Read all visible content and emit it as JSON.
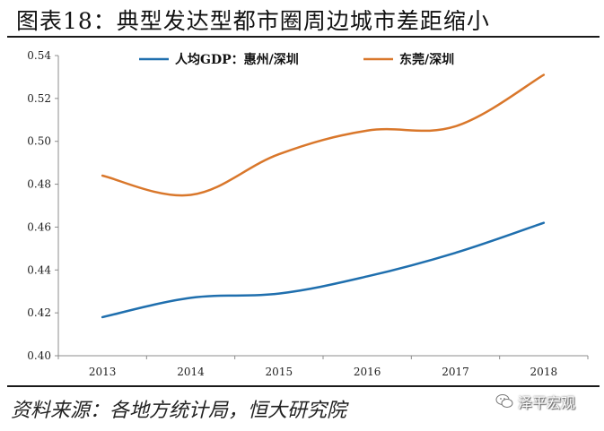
{
  "title": "图表18：典型发达型都市圈周边城市差距缩小",
  "source": "资料来源：各地方统计局，恒大研究院",
  "watermark": "泽平宏观",
  "colors": {
    "series_blue": "#1f6fae",
    "series_orange": "#d9772b",
    "axis": "#8c8c8c",
    "text": "#222222"
  },
  "chart_data": {
    "type": "line",
    "title": "",
    "xlabel": "",
    "ylabel": "",
    "x": [
      "2013",
      "2014",
      "2015",
      "2016",
      "2017",
      "2018"
    ],
    "ylim": [
      0.4,
      0.54
    ],
    "yticks": [
      0.4,
      0.42,
      0.44,
      0.46,
      0.48,
      0.5,
      0.52,
      0.54
    ],
    "ytick_labels": [
      "0.40",
      "0.42",
      "0.44",
      "0.46",
      "0.48",
      "0.50",
      "0.52",
      "0.54"
    ],
    "grid": false,
    "legend_position": "top",
    "series": [
      {
        "name": "人均GDP：惠州/深圳",
        "color": "#1f6fae",
        "values": [
          0.418,
          0.427,
          0.429,
          0.437,
          0.448,
          0.462
        ]
      },
      {
        "name": "东莞/深圳",
        "color": "#d9772b",
        "values": [
          0.484,
          0.475,
          0.494,
          0.505,
          0.507,
          0.531
        ]
      }
    ]
  }
}
